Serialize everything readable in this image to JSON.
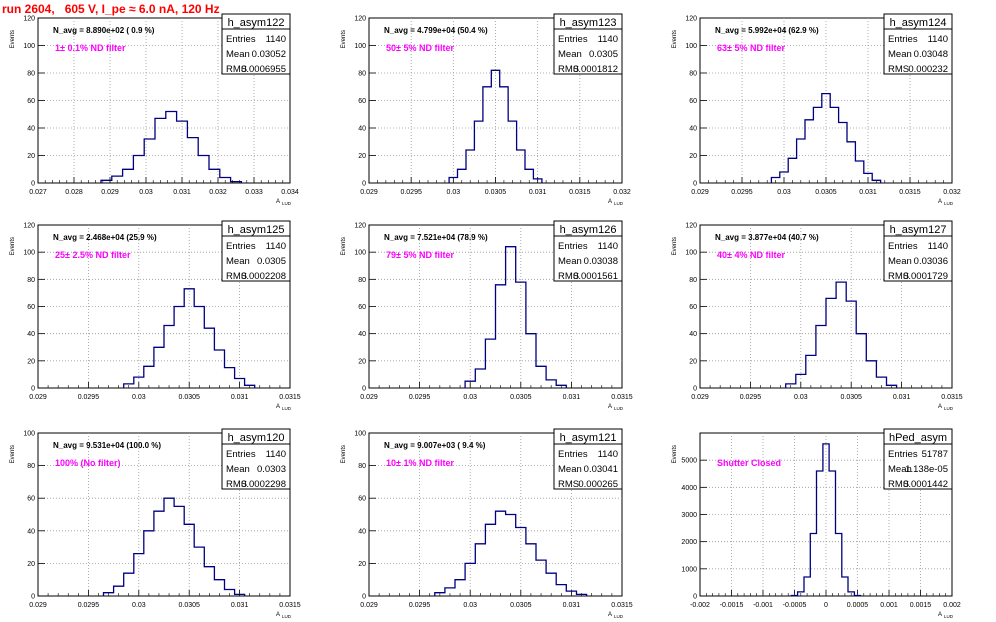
{
  "header": {
    "title": "run 2604,   605 V, I_pe ≈ 6.0 nA, 120 Hz"
  },
  "colors": {
    "title": "#ff0000",
    "filter_label": "#ff00ff",
    "histogram": "#000080",
    "grid": "#999999",
    "axis": "#000000"
  },
  "axis_labels": {
    "x": "A",
    "x_sub": "LUD",
    "y": "Events"
  },
  "stats_labels": {
    "entries": "Entries",
    "mean": "Mean",
    "rms": "RMS"
  },
  "chart_data": [
    {
      "type": "bar",
      "name": "h_asym122",
      "navg": "N_avg = 8.890e+02 ( 0.9 %)",
      "filter": "1± 0.1% ND filter",
      "entries": "1140",
      "mean": "0.03052",
      "rms": "0.0006955",
      "xlim": [
        0.027,
        0.034
      ],
      "ylim": [
        0,
        120
      ],
      "xticks": [
        0.027,
        0.028,
        0.029,
        0.03,
        0.031,
        0.032,
        0.033,
        0.034
      ],
      "xtick_labels": [
        "0.027",
        "0.028",
        "0.029",
        "0.03",
        "0.031",
        "0.032",
        "0.033",
        "0.034"
      ],
      "yticks": [
        0,
        20,
        40,
        60,
        80,
        100,
        120
      ],
      "x": [
        0.0289,
        0.0292,
        0.0295,
        0.0298,
        0.0301,
        0.0304,
        0.0307,
        0.031,
        0.0313,
        0.0316,
        0.0319,
        0.0322,
        0.0325
      ],
      "values": [
        2,
        5,
        10,
        20,
        32,
        47,
        52,
        45,
        33,
        20,
        10,
        4,
        1
      ]
    },
    {
      "type": "bar",
      "name": "h_asym123",
      "navg": "N_avg = 4.799e+04 (50.4 %)",
      "filter": "50± 5% ND filter",
      "entries": "1140",
      "mean": "0.0305",
      "rms": "0.0001812",
      "xlim": [
        0.029,
        0.032
      ],
      "ylim": [
        0,
        120
      ],
      "xticks": [
        0.029,
        0.0295,
        0.03,
        0.0305,
        0.031,
        0.0315,
        0.032
      ],
      "xtick_labels": [
        "0.029",
        "0.0295",
        "0.03",
        "0.0305",
        "0.031",
        "0.0315",
        "0.032"
      ],
      "yticks": [
        0,
        20,
        40,
        60,
        80,
        100,
        120
      ],
      "x": [
        0.03,
        0.0301,
        0.0302,
        0.0303,
        0.0304,
        0.0305,
        0.0306,
        0.0307,
        0.0308,
        0.0309,
        0.031
      ],
      "values": [
        4,
        10,
        24,
        45,
        70,
        82,
        70,
        45,
        24,
        10,
        3
      ]
    },
    {
      "type": "bar",
      "name": "h_asym124",
      "navg": "N_avg = 5.992e+04 (62.9 %)",
      "filter": "63± 5% ND filter",
      "entries": "1140",
      "mean": "0.03048",
      "rms": "0.000232",
      "xlim": [
        0.029,
        0.032
      ],
      "ylim": [
        0,
        120
      ],
      "xticks": [
        0.029,
        0.0295,
        0.03,
        0.0305,
        0.031,
        0.0315,
        0.032
      ],
      "xtick_labels": [
        "0.029",
        "0.0295",
        "0.03",
        "0.0305",
        "0.031",
        "0.0315",
        "0.032"
      ],
      "yticks": [
        0,
        20,
        40,
        60,
        80,
        100,
        120
      ],
      "x": [
        0.0299,
        0.03,
        0.0301,
        0.0302,
        0.0303,
        0.0304,
        0.0305,
        0.0306,
        0.0307,
        0.0308,
        0.0309,
        0.031,
        0.0311
      ],
      "values": [
        4,
        8,
        18,
        32,
        46,
        55,
        65,
        55,
        44,
        30,
        16,
        7,
        2
      ]
    },
    {
      "type": "bar",
      "name": "h_asym125",
      "navg": "N_avg = 2.468e+04 (25.9 %)",
      "filter": "25± 2.5% ND filter",
      "entries": "1140",
      "mean": "0.0305",
      "rms": "0.0002208",
      "xlim": [
        0.029,
        0.0315
      ],
      "ylim": [
        0,
        120
      ],
      "xticks": [
        0.029,
        0.0295,
        0.03,
        0.0305,
        0.031,
        0.0315
      ],
      "xtick_labels": [
        "0.029",
        "0.0295",
        "0.03",
        "0.0305",
        "0.031",
        "0.0315"
      ],
      "yticks": [
        0,
        20,
        40,
        60,
        80,
        100,
        120
      ],
      "x": [
        0.0299,
        0.03,
        0.0301,
        0.0302,
        0.0303,
        0.0304,
        0.0305,
        0.0306,
        0.0307,
        0.0308,
        0.0309,
        0.031,
        0.0311
      ],
      "values": [
        3,
        8,
        16,
        30,
        46,
        60,
        73,
        60,
        44,
        28,
        15,
        7,
        2
      ]
    },
    {
      "type": "bar",
      "name": "h_asym126",
      "navg": "N_avg = 7.521e+04 (78.9 %)",
      "filter": "79± 5% ND filter",
      "entries": "1140",
      "mean": "0.03038",
      "rms": "0.0001561",
      "xlim": [
        0.029,
        0.0315
      ],
      "ylim": [
        0,
        120
      ],
      "xticks": [
        0.029,
        0.0295,
        0.03,
        0.0305,
        0.031,
        0.0315
      ],
      "xtick_labels": [
        "0.029",
        "0.0295",
        "0.03",
        "0.0305",
        "0.031",
        "0.0315"
      ],
      "yticks": [
        0,
        20,
        40,
        60,
        80,
        100,
        120
      ],
      "x": [
        0.03,
        0.0301,
        0.0302,
        0.0303,
        0.0304,
        0.0305,
        0.0306,
        0.0307,
        0.0308,
        0.0309
      ],
      "values": [
        5,
        14,
        36,
        76,
        104,
        78,
        40,
        16,
        6,
        2
      ]
    },
    {
      "type": "bar",
      "name": "h_asym127",
      "navg": "N_avg = 3.877e+04 (40.7 %)",
      "filter": "40± 4% ND filter",
      "entries": "1140",
      "mean": "0.03036",
      "rms": "0.0001729",
      "xlim": [
        0.029,
        0.0315
      ],
      "ylim": [
        0,
        120
      ],
      "xticks": [
        0.029,
        0.0295,
        0.03,
        0.0305,
        0.031,
        0.0315
      ],
      "xtick_labels": [
        "0.029",
        "0.0295",
        "0.03",
        "0.0305",
        "0.031",
        "0.0315"
      ],
      "yticks": [
        0,
        20,
        40,
        60,
        80,
        100,
        120
      ],
      "x": [
        0.0299,
        0.03,
        0.0301,
        0.0302,
        0.0303,
        0.0304,
        0.0305,
        0.0306,
        0.0307,
        0.0308,
        0.0309
      ],
      "values": [
        3,
        10,
        24,
        46,
        66,
        78,
        64,
        40,
        20,
        8,
        2
      ]
    },
    {
      "type": "bar",
      "name": "h_asym120",
      "navg": "N_avg = 9.531e+04 (100.0 %)",
      "filter": "100% (No filter)",
      "entries": "1140",
      "mean": "0.0303",
      "rms": "0.0002298",
      "xlim": [
        0.029,
        0.0315
      ],
      "ylim": [
        0,
        100
      ],
      "xticks": [
        0.029,
        0.0295,
        0.03,
        0.0305,
        0.031,
        0.0315
      ],
      "xtick_labels": [
        "0.029",
        "0.0295",
        "0.03",
        "0.0305",
        "0.031",
        "0.0315"
      ],
      "yticks": [
        0,
        20,
        40,
        60,
        80,
        100
      ],
      "x": [
        0.0297,
        0.0298,
        0.0299,
        0.03,
        0.0301,
        0.0302,
        0.0303,
        0.0304,
        0.0305,
        0.0306,
        0.0307,
        0.0308,
        0.0309,
        0.031
      ],
      "values": [
        2,
        6,
        14,
        26,
        40,
        52,
        60,
        55,
        44,
        30,
        18,
        10,
        4,
        1
      ]
    },
    {
      "type": "bar",
      "name": "h_asym121",
      "navg": "N_avg = 9.007e+03 ( 9.4 %)",
      "filter": "10± 1% ND filter",
      "entries": "1140",
      "mean": "0.03041",
      "rms": "0.000265",
      "xlim": [
        0.029,
        0.0315
      ],
      "ylim": [
        0,
        100
      ],
      "xticks": [
        0.029,
        0.0295,
        0.03,
        0.0305,
        0.031,
        0.0315
      ],
      "xtick_labels": [
        "0.029",
        "0.0295",
        "0.03",
        "0.0305",
        "0.031",
        "0.0315"
      ],
      "yticks": [
        0,
        20,
        40,
        60,
        80,
        100
      ],
      "x": [
        0.0297,
        0.0298,
        0.0299,
        0.03,
        0.0301,
        0.0302,
        0.0303,
        0.0304,
        0.0305,
        0.0306,
        0.0307,
        0.0308,
        0.0309,
        0.031,
        0.0311
      ],
      "values": [
        2,
        5,
        10,
        20,
        32,
        44,
        52,
        50,
        42,
        32,
        22,
        14,
        7,
        3,
        1
      ]
    },
    {
      "type": "bar",
      "name": "hPed_asym",
      "navg": "",
      "filter": "Shutter Closed",
      "entries": "51787",
      "mean": "1.138e-05",
      "rms": "0.0001442",
      "xlim": [
        -0.002,
        0.002
      ],
      "ylim": [
        0,
        6000
      ],
      "xticks": [
        -0.002,
        -0.0015,
        -0.001,
        -0.0005,
        0,
        0.0005,
        0.001,
        0.0015,
        0.002
      ],
      "xtick_labels": [
        "-0.002",
        "-0.0015",
        "-0.001",
        "-0.0005",
        "0",
        "0.0005",
        "0.001",
        "0.0015",
        "0.002"
      ],
      "yticks": [
        0,
        1000,
        2000,
        3000,
        4000,
        5000
      ],
      "x": [
        -0.0005,
        -0.0004,
        -0.0003,
        -0.0002,
        -0.0001,
        0,
        0.0001,
        0.0002,
        0.0003,
        0.0004,
        0.0005
      ],
      "values": [
        20,
        150,
        700,
        2300,
        4600,
        5600,
        4600,
        2300,
        700,
        150,
        20
      ]
    }
  ]
}
